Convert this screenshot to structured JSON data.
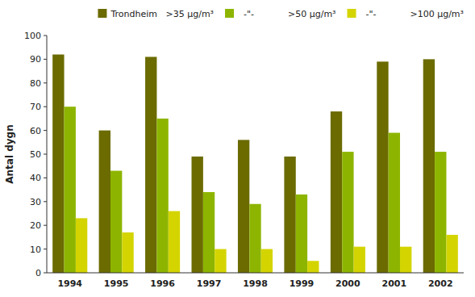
{
  "chart_data": {
    "type": "bar",
    "y_label": "Antal dygn",
    "categories": [
      "1994",
      "1995",
      "1996",
      "1997",
      "1998",
      "1999",
      "2000",
      "2001",
      "2002"
    ],
    "series": [
      {
        "name": "Trondheim   >35 μg/m³",
        "color": "#6b6b00",
        "values": [
          92,
          60,
          91,
          49,
          56,
          49,
          68,
          89,
          90
        ]
      },
      {
        "name": "  -\"-            >50 μg/m³",
        "color": "#8db500",
        "values": [
          70,
          43,
          65,
          34,
          29,
          33,
          51,
          59,
          51
        ]
      },
      {
        "name": "  -\"-            >100 μg/m³",
        "color": "#d4d400",
        "values": [
          23,
          17,
          26,
          10,
          10,
          5,
          11,
          11,
          16
        ]
      }
    ],
    "ylim": [
      0,
      100
    ],
    "yticks": [
      0,
      10,
      20,
      30,
      40,
      50,
      60,
      70,
      80,
      90,
      100
    ],
    "grid": false,
    "legend": "upper right"
  }
}
